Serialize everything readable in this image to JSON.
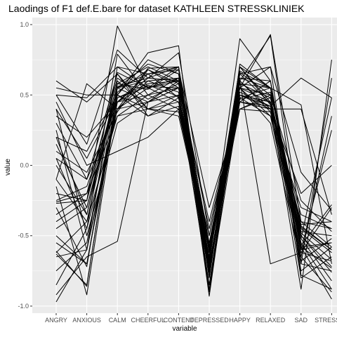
{
  "chart_data": {
    "type": "line",
    "title": "Laodings of F1 def.E.bare for dataset KATHLEEN STRESSKLINIEK",
    "xlabel": "variable",
    "ylabel": "value",
    "ylim": [
      -1.05,
      1.05
    ],
    "yticks": [
      -1.0,
      -0.5,
      0.0,
      0.5,
      1.0
    ],
    "ytick_labels": [
      "-1.0",
      "-0.5",
      "0.0",
      "0.5",
      "1.0"
    ],
    "categories": [
      "ANGRY",
      "ANXIOUS",
      "CALM",
      "CHEERFUL",
      "CONTENT",
      "DEPRESSED",
      "HAPPY",
      "RELAXED",
      "SAD",
      "STRESSED"
    ],
    "grid": true,
    "legend": "none",
    "colors": {
      "panel": "#ebebeb",
      "grid": "#ffffff",
      "line": "#000000"
    },
    "series": [
      {
        "values": [
          -0.27,
          -0.25,
          0.99,
          0.55,
          0.62,
          -0.8,
          0.65,
          0.7,
          -0.78,
          -0.88
        ]
      },
      {
        "values": [
          -0.65,
          -0.6,
          0.45,
          0.57,
          0.49,
          -0.6,
          0.67,
          0.55,
          -0.57,
          -0.28
        ]
      },
      {
        "values": [
          0.6,
          0.45,
          0.65,
          0.4,
          0.5,
          -0.75,
          0.5,
          0.45,
          -0.48,
          -0.67
        ]
      },
      {
        "values": [
          0.05,
          -0.1,
          0.4,
          0.69,
          0.7,
          -0.6,
          0.6,
          0.4,
          -0.43,
          -0.6
        ]
      },
      {
        "values": [
          -0.92,
          -0.65,
          -0.54,
          0.45,
          0.55,
          -0.4,
          0.5,
          0.42,
          -0.88,
          0.75
        ]
      },
      {
        "values": [
          0.55,
          0.5,
          0.5,
          0.8,
          0.85,
          -0.9,
          0.72,
          0.55,
          -0.6,
          -0.55
        ]
      },
      {
        "values": [
          -0.61,
          -0.86,
          0.55,
          0.65,
          0.68,
          -0.3,
          0.4,
          0.5,
          -0.25,
          -0.47
        ]
      },
      {
        "values": [
          0.15,
          -0.3,
          0.55,
          0.6,
          0.62,
          -0.85,
          0.62,
          0.6,
          -0.58,
          -0.73
        ]
      },
      {
        "values": [
          -0.3,
          -0.72,
          0.58,
          0.7,
          0.6,
          -0.66,
          0.55,
          0.93,
          -0.4,
          -0.58
        ]
      },
      {
        "values": [
          0.3,
          -0.1,
          0.65,
          0.35,
          0.42,
          -0.65,
          0.9,
          0.6,
          -0.68,
          -0.52
        ]
      },
      {
        "values": [
          -0.85,
          -0.45,
          0.79,
          0.5,
          0.55,
          -0.72,
          0.45,
          0.4,
          -0.2,
          0.0
        ]
      },
      {
        "values": [
          -0.26,
          -0.2,
          0.35,
          0.4,
          0.38,
          -0.6,
          0.48,
          0.35,
          -0.3,
          -0.4
        ]
      },
      {
        "values": [
          0.4,
          -0.5,
          0.3,
          0.45,
          0.5,
          -0.78,
          0.55,
          0.3,
          -0.7,
          -0.75
        ]
      },
      {
        "values": [
          -0.1,
          0.58,
          0.4,
          0.55,
          0.45,
          -0.6,
          0.45,
          0.42,
          0.62,
          0.48
        ]
      },
      {
        "values": [
          0.0,
          -0.35,
          0.55,
          0.72,
          0.65,
          -0.57,
          0.58,
          0.55,
          -0.45,
          -0.62
        ]
      },
      {
        "values": [
          -0.55,
          -0.7,
          0.45,
          0.62,
          0.7,
          -0.68,
          0.7,
          0.45,
          -0.52,
          -0.82
        ]
      },
      {
        "values": [
          0.2,
          0.1,
          0.5,
          0.35,
          0.48,
          -0.85,
          0.5,
          0.4,
          0.4,
          -0.35
        ]
      },
      {
        "values": [
          -0.4,
          -0.25,
          0.66,
          0.55,
          0.6,
          -0.45,
          0.5,
          0.45,
          -0.6,
          0.25
        ]
      },
      {
        "values": [
          -0.97,
          -0.6,
          0.4,
          0.45,
          0.55,
          -0.75,
          0.6,
          0.38,
          -0.52,
          0.48
        ]
      },
      {
        "values": [
          0.5,
          0.15,
          0.82,
          0.62,
          0.8,
          -0.5,
          0.55,
          0.7,
          -0.05,
          -0.32
        ]
      },
      {
        "values": [
          -0.15,
          -0.92,
          0.48,
          0.58,
          0.6,
          -0.7,
          0.48,
          0.55,
          0.43,
          -0.7
        ]
      },
      {
        "values": [
          0.1,
          -0.05,
          0.38,
          0.68,
          0.55,
          -0.74,
          0.66,
          0.5,
          -0.8,
          -0.65
        ]
      },
      {
        "values": [
          -0.62,
          -0.4,
          0.35,
          0.5,
          0.4,
          -0.65,
          0.55,
          0.35,
          -0.65,
          -0.9
        ]
      },
      {
        "values": [
          0.25,
          -0.6,
          0.7,
          0.55,
          0.7,
          -0.9,
          0.6,
          0.92,
          -0.58,
          -0.55
        ]
      },
      {
        "values": [
          -0.45,
          -0.3,
          0.5,
          0.4,
          0.35,
          -0.6,
          0.45,
          0.4,
          -0.35,
          -0.45
        ]
      },
      {
        "values": [
          -0.2,
          -0.25,
          0.55,
          0.45,
          0.6,
          -0.62,
          0.4,
          0.48,
          -0.5,
          -0.72
        ]
      },
      {
        "values": [
          0.35,
          0.2,
          0.45,
          0.65,
          0.7,
          -0.8,
          0.7,
          0.43,
          -0.42,
          -0.4
        ]
      },
      {
        "values": [
          -0.5,
          -0.7,
          0.5,
          0.75,
          0.65,
          -0.93,
          0.6,
          -0.7,
          -0.62,
          -0.3
        ]
      },
      {
        "values": [
          0.45,
          0.0,
          0.1,
          0.2,
          0.4,
          -0.5,
          0.55,
          0.45,
          -0.65,
          0.35
        ]
      },
      {
        "values": [
          -0.35,
          -0.2,
          0.62,
          0.47,
          0.58,
          -0.58,
          0.62,
          0.55,
          -0.47,
          -0.5
        ]
      },
      {
        "values": [
          0.05,
          -0.45,
          0.4,
          0.6,
          0.52,
          -0.88,
          0.45,
          0.6,
          -0.75,
          -0.58
        ]
      },
      {
        "values": [
          -0.75,
          -0.55,
          0.58,
          0.54,
          0.68,
          -0.72,
          0.52,
          0.42,
          -0.4,
          -0.45
        ]
      },
      {
        "values": [
          0.5,
          0.48,
          0.7,
          0.65,
          0.48,
          -0.65,
          0.7,
          0.55,
          -0.55,
          -0.88
        ]
      },
      {
        "values": [
          -0.25,
          -0.15,
          0.45,
          0.5,
          0.62,
          -0.55,
          0.55,
          0.5,
          -0.7,
          0.62
        ]
      },
      {
        "values": [
          0.2,
          -0.35,
          0.6,
          0.4,
          0.45,
          -0.7,
          0.4,
          0.38,
          -0.62,
          -0.68
        ]
      },
      {
        "values": [
          -0.63,
          -0.85,
          0.52,
          0.68,
          0.58,
          -0.62,
          0.58,
          0.48,
          -0.5,
          -0.76
        ]
      },
      {
        "values": [
          0.4,
          0.05,
          0.48,
          0.56,
          0.55,
          -0.76,
          0.47,
          0.52,
          -0.44,
          -0.6
        ]
      },
      {
        "values": [
          -0.1,
          -0.4,
          0.56,
          0.62,
          0.6,
          -0.68,
          0.65,
          0.44,
          -0.58,
          -0.95
        ]
      }
    ]
  }
}
